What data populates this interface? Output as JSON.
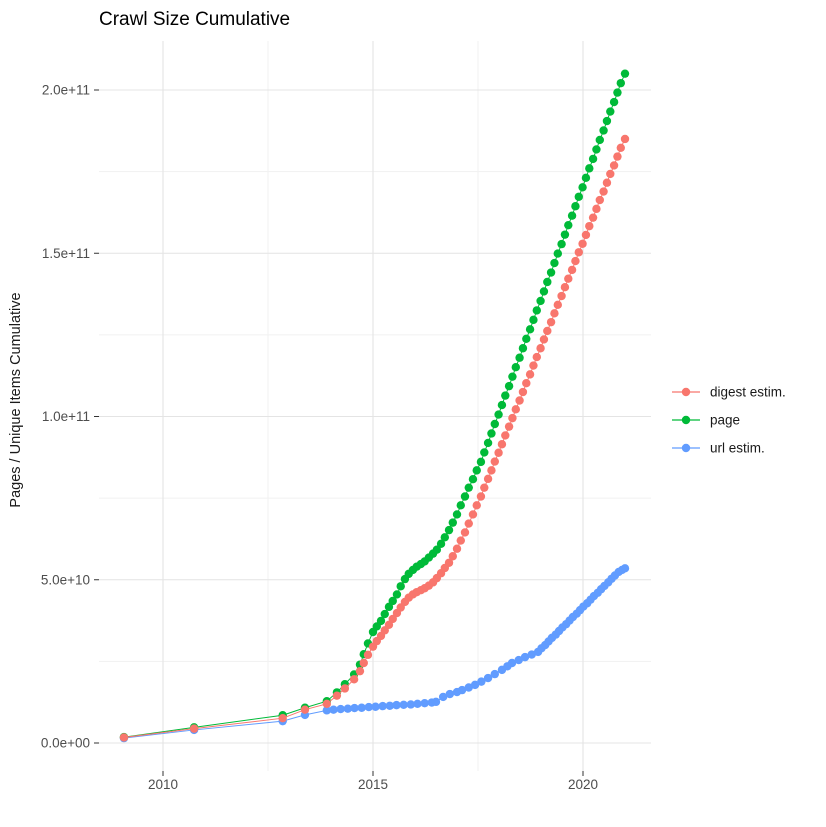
{
  "title": "Crawl Size Cumulative",
  "x_axis": {
    "breaks": [
      {
        "value": 2010,
        "label": "2010"
      },
      {
        "value": 2015,
        "label": "2015"
      },
      {
        "value": 2020,
        "label": "2020"
      }
    ],
    "minor_breaks": [
      2012.5,
      2017.5
    ]
  },
  "y_axis": {
    "title": "Pages / Unique Items Cumulative",
    "breaks": [
      {
        "value": 0,
        "label": "0.0e+00"
      },
      {
        "value": 5,
        "label": "5.0e+10"
      },
      {
        "value": 10,
        "label": "1.0e+11"
      },
      {
        "value": 15,
        "label": "1.5e+11"
      },
      {
        "value": 20,
        "label": "2.0e+11"
      }
    ],
    "minor_breaks": [
      2.5,
      7.5,
      12.5,
      17.5
    ],
    "value_unit": "1e10"
  },
  "legend": {
    "items": [
      {
        "label": "digest estim.",
        "color": "#F8766D"
      },
      {
        "label": "page",
        "color": "#00BA38"
      },
      {
        "label": "url estim.",
        "color": "#619CFF"
      }
    ]
  },
  "colors": {
    "grid_major": "#e4e4e4",
    "grid_minor": "#f1f1f1",
    "tick": "#333333",
    "background": "#ffffff"
  },
  "chart_data": {
    "type": "line",
    "title": "Crawl Size Cumulative",
    "xlabel": "",
    "ylabel": "Pages / Unique Items Cumulative",
    "xlim": [
      2008.5,
      2021.6
    ],
    "ylim_e10": [
      -0.8,
      21.5
    ],
    "grid": true,
    "legend_position": "right",
    "value_unit": "1e10",
    "series": [
      {
        "name": "digest estim.",
        "color": "#F8766D",
        "points": [
          [
            2009.07,
            0.17
          ],
          [
            2010.74,
            0.44
          ],
          [
            2012.85,
            0.76
          ],
          [
            2013.38,
            1.02
          ],
          [
            2013.9,
            1.2
          ],
          [
            2014.14,
            1.45
          ],
          [
            2014.33,
            1.67
          ],
          [
            2014.55,
            1.95
          ],
          [
            2014.69,
            2.2
          ],
          [
            2014.78,
            2.45
          ],
          [
            2014.88,
            2.7
          ],
          [
            2015.0,
            2.95
          ],
          [
            2015.09,
            3.12
          ],
          [
            2015.19,
            3.28
          ],
          [
            2015.28,
            3.45
          ],
          [
            2015.38,
            3.62
          ],
          [
            2015.47,
            3.8
          ],
          [
            2015.57,
            3.98
          ],
          [
            2015.66,
            4.15
          ],
          [
            2015.76,
            4.32
          ],
          [
            2015.85,
            4.45
          ],
          [
            2015.95,
            4.55
          ],
          [
            2016.04,
            4.62
          ],
          [
            2016.14,
            4.68
          ],
          [
            2016.23,
            4.74
          ],
          [
            2016.33,
            4.82
          ],
          [
            2016.43,
            4.92
          ],
          [
            2016.52,
            5.05
          ],
          [
            2016.62,
            5.2
          ],
          [
            2016.71,
            5.36
          ],
          [
            2016.81,
            5.52
          ],
          [
            2016.9,
            5.72
          ],
          [
            2017.0,
            5.95
          ],
          [
            2017.09,
            6.2
          ],
          [
            2017.19,
            6.45
          ],
          [
            2017.28,
            6.72
          ],
          [
            2017.38,
            7.0
          ],
          [
            2017.47,
            7.28
          ],
          [
            2017.57,
            7.55
          ],
          [
            2017.65,
            7.82
          ],
          [
            2017.74,
            8.09
          ],
          [
            2017.82,
            8.35
          ],
          [
            2017.9,
            8.62
          ],
          [
            2017.99,
            8.89
          ],
          [
            2018.07,
            9.15
          ],
          [
            2018.15,
            9.42
          ],
          [
            2018.24,
            9.69
          ],
          [
            2018.32,
            9.95
          ],
          [
            2018.4,
            10.22
          ],
          [
            2018.49,
            10.49
          ],
          [
            2018.57,
            10.75
          ],
          [
            2018.65,
            11.02
          ],
          [
            2018.74,
            11.29
          ],
          [
            2018.82,
            11.56
          ],
          [
            2018.9,
            11.82
          ],
          [
            2018.99,
            12.09
          ],
          [
            2019.07,
            12.36
          ],
          [
            2019.15,
            12.62
          ],
          [
            2019.24,
            12.89
          ],
          [
            2019.32,
            13.16
          ],
          [
            2019.4,
            13.42
          ],
          [
            2019.49,
            13.69
          ],
          [
            2019.57,
            13.96
          ],
          [
            2019.65,
            14.22
          ],
          [
            2019.74,
            14.49
          ],
          [
            2019.82,
            14.76
          ],
          [
            2019.9,
            15.03
          ],
          [
            2019.99,
            15.29
          ],
          [
            2020.07,
            15.56
          ],
          [
            2020.15,
            15.83
          ],
          [
            2020.24,
            16.09
          ],
          [
            2020.32,
            16.36
          ],
          [
            2020.4,
            16.63
          ],
          [
            2020.49,
            16.89
          ],
          [
            2020.57,
            17.16
          ],
          [
            2020.65,
            17.43
          ],
          [
            2020.74,
            17.69
          ],
          [
            2020.82,
            17.96
          ],
          [
            2020.9,
            18.23
          ],
          [
            2021.0,
            18.5
          ]
        ]
      },
      {
        "name": "page",
        "color": "#00BA38",
        "points": [
          [
            2009.07,
            0.18
          ],
          [
            2010.74,
            0.48
          ],
          [
            2012.85,
            0.85
          ],
          [
            2013.38,
            1.08
          ],
          [
            2013.9,
            1.28
          ],
          [
            2014.14,
            1.55
          ],
          [
            2014.33,
            1.8
          ],
          [
            2014.55,
            2.1
          ],
          [
            2014.69,
            2.4
          ],
          [
            2014.78,
            2.72
          ],
          [
            2014.88,
            3.05
          ],
          [
            2015.0,
            3.4
          ],
          [
            2015.09,
            3.57
          ],
          [
            2015.19,
            3.74
          ],
          [
            2015.28,
            3.95
          ],
          [
            2015.38,
            4.17
          ],
          [
            2015.47,
            4.35
          ],
          [
            2015.57,
            4.55
          ],
          [
            2015.66,
            4.8
          ],
          [
            2015.76,
            5.02
          ],
          [
            2015.85,
            5.18
          ],
          [
            2015.95,
            5.3
          ],
          [
            2016.04,
            5.4
          ],
          [
            2016.14,
            5.48
          ],
          [
            2016.23,
            5.56
          ],
          [
            2016.33,
            5.68
          ],
          [
            2016.43,
            5.8
          ],
          [
            2016.52,
            5.92
          ],
          [
            2016.62,
            6.1
          ],
          [
            2016.71,
            6.3
          ],
          [
            2016.81,
            6.52
          ],
          [
            2016.9,
            6.75
          ],
          [
            2017.0,
            7.0
          ],
          [
            2017.09,
            7.28
          ],
          [
            2017.19,
            7.55
          ],
          [
            2017.28,
            7.82
          ],
          [
            2017.38,
            8.08
          ],
          [
            2017.47,
            8.35
          ],
          [
            2017.57,
            8.61
          ],
          [
            2017.65,
            8.9
          ],
          [
            2017.74,
            9.19
          ],
          [
            2017.82,
            9.48
          ],
          [
            2017.9,
            9.77
          ],
          [
            2017.99,
            10.06
          ],
          [
            2018.07,
            10.35
          ],
          [
            2018.15,
            10.64
          ],
          [
            2018.24,
            10.93
          ],
          [
            2018.32,
            11.22
          ],
          [
            2018.4,
            11.51
          ],
          [
            2018.49,
            11.8
          ],
          [
            2018.57,
            12.09
          ],
          [
            2018.65,
            12.38
          ],
          [
            2018.74,
            12.67
          ],
          [
            2018.82,
            12.96
          ],
          [
            2018.9,
            13.25
          ],
          [
            2018.99,
            13.54
          ],
          [
            2019.07,
            13.83
          ],
          [
            2019.15,
            14.12
          ],
          [
            2019.24,
            14.41
          ],
          [
            2019.32,
            14.7
          ],
          [
            2019.4,
            14.99
          ],
          [
            2019.49,
            15.28
          ],
          [
            2019.57,
            15.57
          ],
          [
            2019.65,
            15.86
          ],
          [
            2019.74,
            16.15
          ],
          [
            2019.82,
            16.44
          ],
          [
            2019.9,
            16.73
          ],
          [
            2019.99,
            17.02
          ],
          [
            2020.07,
            17.31
          ],
          [
            2020.15,
            17.6
          ],
          [
            2020.24,
            17.89
          ],
          [
            2020.32,
            18.18
          ],
          [
            2020.4,
            18.47
          ],
          [
            2020.49,
            18.76
          ],
          [
            2020.57,
            19.05
          ],
          [
            2020.65,
            19.34
          ],
          [
            2020.74,
            19.63
          ],
          [
            2020.82,
            19.92
          ],
          [
            2020.9,
            20.21
          ],
          [
            2021.0,
            20.5
          ]
        ]
      },
      {
        "name": "url estim.",
        "color": "#619CFF",
        "points": [
          [
            2009.07,
            0.15
          ],
          [
            2010.74,
            0.4
          ],
          [
            2012.85,
            0.67
          ],
          [
            2013.38,
            0.86
          ],
          [
            2013.9,
            1.0
          ],
          [
            2014.06,
            1.02
          ],
          [
            2014.23,
            1.04
          ],
          [
            2014.4,
            1.05
          ],
          [
            2014.56,
            1.07
          ],
          [
            2014.73,
            1.08
          ],
          [
            2014.9,
            1.1
          ],
          [
            2015.06,
            1.11
          ],
          [
            2015.23,
            1.13
          ],
          [
            2015.4,
            1.14
          ],
          [
            2015.56,
            1.16
          ],
          [
            2015.73,
            1.17
          ],
          [
            2015.9,
            1.18
          ],
          [
            2016.06,
            1.2
          ],
          [
            2016.23,
            1.22
          ],
          [
            2016.4,
            1.24
          ],
          [
            2016.5,
            1.26
          ],
          [
            2016.67,
            1.41
          ],
          [
            2016.83,
            1.5
          ],
          [
            2017.0,
            1.56
          ],
          [
            2017.12,
            1.62
          ],
          [
            2017.28,
            1.7
          ],
          [
            2017.43,
            1.78
          ],
          [
            2017.58,
            1.88
          ],
          [
            2017.74,
            1.99
          ],
          [
            2017.9,
            2.11
          ],
          [
            2018.07,
            2.24
          ],
          [
            2018.2,
            2.35
          ],
          [
            2018.31,
            2.45
          ],
          [
            2018.47,
            2.54
          ],
          [
            2018.62,
            2.63
          ],
          [
            2018.78,
            2.71
          ],
          [
            2018.93,
            2.79
          ],
          [
            2019.01,
            2.9
          ],
          [
            2019.1,
            3.0
          ],
          [
            2019.18,
            3.11
          ],
          [
            2019.26,
            3.22
          ],
          [
            2019.35,
            3.32
          ],
          [
            2019.43,
            3.43
          ],
          [
            2019.51,
            3.54
          ],
          [
            2019.6,
            3.64
          ],
          [
            2019.68,
            3.75
          ],
          [
            2019.76,
            3.86
          ],
          [
            2019.85,
            3.96
          ],
          [
            2019.93,
            4.07
          ],
          [
            2020.01,
            4.18
          ],
          [
            2020.1,
            4.28
          ],
          [
            2020.18,
            4.39
          ],
          [
            2020.26,
            4.5
          ],
          [
            2020.35,
            4.6
          ],
          [
            2020.43,
            4.71
          ],
          [
            2020.51,
            4.81
          ],
          [
            2020.6,
            4.92
          ],
          [
            2020.68,
            5.03
          ],
          [
            2020.76,
            5.13
          ],
          [
            2020.85,
            5.24
          ],
          [
            2020.93,
            5.3
          ],
          [
            2021.0,
            5.35
          ]
        ]
      }
    ]
  }
}
